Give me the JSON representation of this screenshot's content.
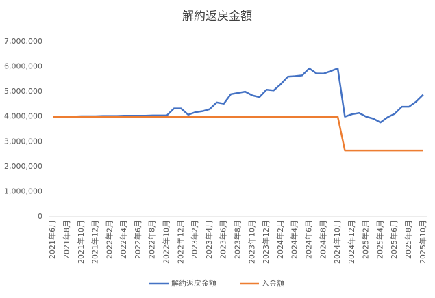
{
  "chart_data": {
    "type": "line",
    "title": "解約返戻金額",
    "categories": [
      "2021年6月",
      null,
      "2021年8月",
      null,
      "2021年10月",
      null,
      "2021年12月",
      null,
      "2022年2月",
      null,
      "2022年4月",
      null,
      "2022年6月",
      null,
      "2022年8月",
      null,
      "2022年10月",
      null,
      "2022年12月",
      null,
      "2023年2月",
      null,
      "2023年4月",
      null,
      "2023年6月",
      null,
      "2023年8月",
      null,
      "2023年10月",
      null,
      "2023年12月",
      null,
      "2024年2月",
      null,
      "2024年4月",
      null,
      "2024年6月",
      null,
      "2024年8月",
      null,
      "2024年10月",
      null,
      "2024年12月",
      null,
      "2025年2月",
      null,
      "2025年4月",
      null,
      "2025年6月",
      null,
      "2025年8月",
      null,
      "2025年10月"
    ],
    "series": [
      {
        "name": "解約返戻金額",
        "color": "#4472c4",
        "values": [
          4000000,
          4000000,
          4010000,
          4010000,
          4020000,
          4020000,
          4020000,
          4030000,
          4030000,
          4030000,
          4040000,
          4040000,
          4040000,
          4040000,
          4050000,
          4050000,
          4050000,
          4330000,
          4330000,
          4080000,
          4180000,
          4220000,
          4300000,
          4570000,
          4520000,
          4900000,
          4950000,
          5000000,
          4850000,
          4780000,
          5080000,
          5050000,
          5300000,
          5600000,
          5620000,
          5650000,
          5930000,
          5730000,
          5720000,
          5820000,
          5930000,
          4000000,
          4100000,
          4150000,
          4000000,
          3920000,
          3770000,
          3980000,
          4120000,
          4400000,
          4400000,
          4600000,
          4880000
        ]
      },
      {
        "name": "入金額",
        "color": "#ed7d31",
        "values": [
          4000000,
          4000000,
          4000000,
          4000000,
          4000000,
          4000000,
          4000000,
          4000000,
          4000000,
          4000000,
          4000000,
          4000000,
          4000000,
          4000000,
          4000000,
          4000000,
          4000000,
          4000000,
          4000000,
          4000000,
          4000000,
          4000000,
          4000000,
          4000000,
          4000000,
          4000000,
          4000000,
          4000000,
          4000000,
          4000000,
          4000000,
          4000000,
          4000000,
          4000000,
          4000000,
          4000000,
          4000000,
          4000000,
          4000000,
          4000000,
          4000000,
          2650000,
          2650000,
          2650000,
          2650000,
          2650000,
          2650000,
          2650000,
          2650000,
          2650000,
          2650000,
          2650000,
          2650000
        ]
      }
    ],
    "ylim": [
      0,
      7000000
    ],
    "yticks": [
      0,
      {
        "value": 1000000,
        "label": "1,000,000"
      },
      {
        "value": 2000000,
        "label": "2,000,000"
      },
      {
        "value": 3000000,
        "label": "3,000,000"
      },
      {
        "value": 4000000,
        "label": "4,000,000"
      },
      {
        "value": 5000000,
        "label": "5,000,000"
      },
      {
        "value": 6000000,
        "label": "6,000,000"
      },
      {
        "value": 7000000,
        "label": "7,000,000"
      }
    ],
    "grid": false,
    "legend": "bottom"
  }
}
